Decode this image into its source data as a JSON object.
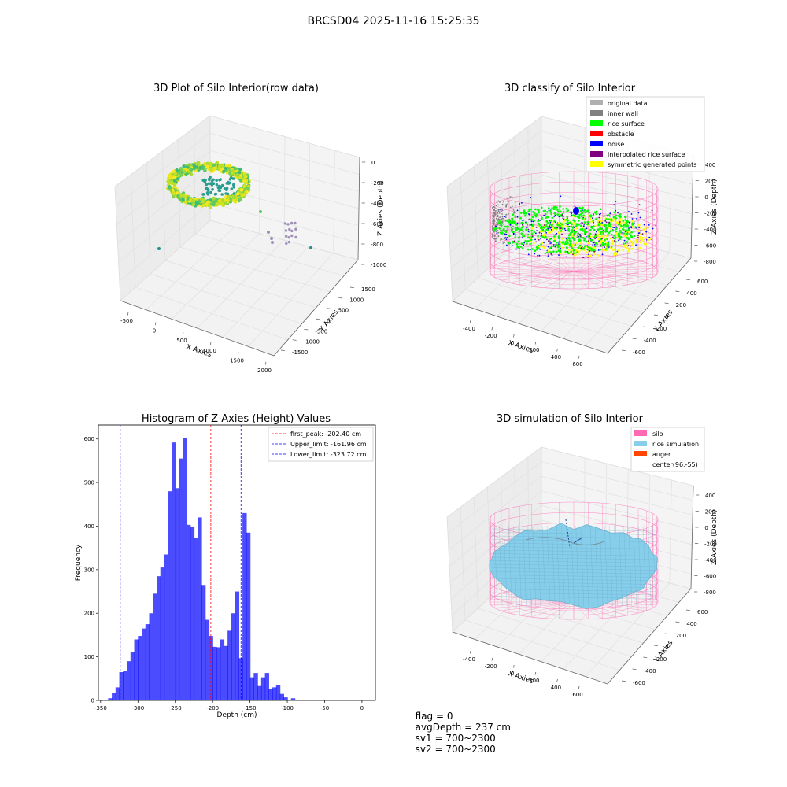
{
  "suptitle": "BRCSD04 2025-11-16 15:25:35",
  "colors": {
    "hist": "#0000ff",
    "peak": "#ff0000",
    "limit": "#0000ff",
    "rice_green": "#00ff00",
    "silo_pink": "#ff69b4",
    "rice_sim": "#87ceeb",
    "auger": "#ff4500"
  },
  "footer": {
    "flag": "flag = 0",
    "avg": "avgDepth = 237 cm",
    "sv1": "sv1 = 700~2300",
    "sv2": "sv2 = 700~2300"
  },
  "chart_data": [
    {
      "type": "scatter3d",
      "title": "3D Plot of Silo Interior(row data)",
      "xlabel": "X Axies",
      "ylabel": "Y Axies",
      "zlabel": "Z Axies (Depth)",
      "xticks": [
        "-500",
        "0",
        "500",
        "1000",
        "1500",
        "2000"
      ],
      "yticks": [
        "-1500",
        "-1000",
        "-500",
        "0",
        "500",
        "1000",
        "1500"
      ],
      "zticks": [
        "0",
        "-200",
        "-400",
        "-600",
        "-800",
        "-1000"
      ]
    },
    {
      "type": "scatter3d",
      "title": "3D classify of Silo Interior",
      "xlabel": "X Axies",
      "ylabel": "Y Axies",
      "zlabel": "Z Axies (Depth)",
      "xticks": [
        "-400",
        "-200",
        "0",
        "200",
        "400",
        "600"
      ],
      "yticks": [
        "-600",
        "-400",
        "-200",
        "0",
        "200",
        "400",
        "600"
      ],
      "zticks": [
        "400",
        "200",
        "0",
        "-200",
        "-400",
        "-600",
        "-800"
      ],
      "legend_position": "top-right",
      "legend": [
        {
          "label": "original data",
          "color": "#b0b0b0"
        },
        {
          "label": "inner wall",
          "color": "#808080"
        },
        {
          "label": "rice surface",
          "color": "#00ff00"
        },
        {
          "label": "obstacle",
          "color": "#ff0000"
        },
        {
          "label": "noise",
          "color": "#0000ff"
        },
        {
          "label": "interpolated rice surface",
          "color": "#800080"
        },
        {
          "label": "symmetric generated points",
          "color": "#ffff00"
        }
      ]
    },
    {
      "type": "bar",
      "title": "Histogram of Z-Axies (Height) Values",
      "xlabel": "Depth (cm)",
      "ylabel": "Frequency",
      "xlim": [
        -350,
        0
      ],
      "ylim": [
        0,
        630
      ],
      "xticks": [
        -350,
        -300,
        -250,
        -200,
        -150,
        -100,
        -50,
        0
      ],
      "yticks": [
        0,
        100,
        200,
        300,
        400,
        500,
        600
      ],
      "bin_start": -340,
      "bin_width": 5,
      "values": [
        5,
        18,
        30,
        65,
        67,
        90,
        112,
        140,
        148,
        165,
        175,
        200,
        245,
        285,
        305,
        335,
        480,
        592,
        487,
        555,
        603,
        403,
        398,
        373,
        420,
        265,
        185,
        148,
        123,
        122,
        140,
        125,
        160,
        200,
        250,
        97,
        430,
        385,
        53,
        63,
        33,
        53,
        63,
        27,
        30,
        35,
        15,
        7,
        0,
        5
      ],
      "lines": [
        {
          "label": "first_peak: -202.40 cm",
          "x": -202.4,
          "color": "#ff0000"
        },
        {
          "label": "Upper_limit: -161.96 cm",
          "x": -161.96,
          "color": "#0000ff"
        },
        {
          "label": "Lower_limit: -323.72 cm",
          "x": -323.72,
          "color": "#0000ff"
        }
      ],
      "legend_position": "top-right"
    },
    {
      "type": "surface3d",
      "title": "3D simulation of Silo Interior",
      "xlabel": "X Axies",
      "ylabel": "Y Axies",
      "zlabel": "Z Axies (Depth)",
      "xticks": [
        "-400",
        "-200",
        "0",
        "200",
        "400",
        "600"
      ],
      "yticks": [
        "-600",
        "-400",
        "-200",
        "0",
        "200",
        "400",
        "600"
      ],
      "zticks": [
        "400",
        "200",
        "0",
        "-200",
        "-400",
        "-600",
        "-800"
      ],
      "legend_position": "top-right",
      "legend": [
        {
          "label": "silo",
          "color": "#ff69b4"
        },
        {
          "label": "rice simulation",
          "color": "#87ceeb"
        },
        {
          "label": "auger",
          "color": "#ff4500"
        },
        {
          "label": "center(96,-55)",
          "color": ""
        }
      ]
    }
  ]
}
